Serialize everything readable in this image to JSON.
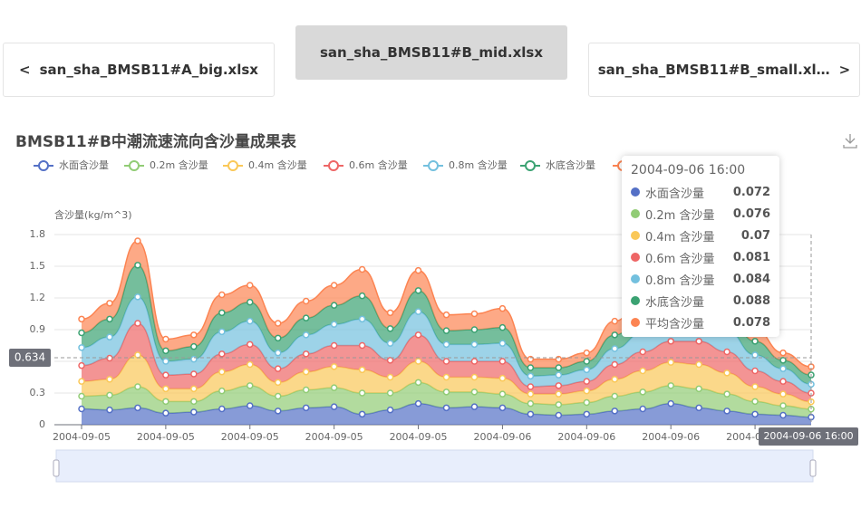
{
  "tabs": {
    "prev": "san_sha_BMSB11#A_big.xlsx",
    "current": "san_sha_BMSB11#B_mid.xlsx",
    "next": "san_sha_BMSB11#B_small.xl…"
  },
  "chart_data": {
    "type": "stacked-area",
    "title": "BMSB11#B中潮流速流向含沙量成果表",
    "y_label": "含沙量(kg/m^3)",
    "categories": [
      "2004-09-05",
      null,
      null,
      "2004-09-05",
      null,
      null,
      "2004-09-05",
      null,
      null,
      "2004-09-05",
      null,
      null,
      "2004-09-05",
      null,
      null,
      "2004-09-06",
      null,
      null,
      "2004-09-06",
      null,
      null,
      "2004-09-06",
      null,
      null,
      "2004-09-06",
      null,
      null
    ],
    "ylim": [
      0,
      1.8
    ],
    "yticks": [
      0,
      0.3,
      0.6,
      0.9,
      1.2,
      1.5,
      1.8
    ],
    "grid": true,
    "pointer_x_label": "2004-09-06 16:00",
    "pointer_y": 0.634,
    "pointer_index": 26,
    "series": [
      {
        "name": "水面含沙量",
        "color": "#5470c6",
        "values": [
          0.15,
          0.14,
          0.16,
          0.11,
          0.12,
          0.15,
          0.18,
          0.13,
          0.16,
          0.17,
          0.1,
          0.14,
          0.2,
          0.16,
          0.17,
          0.16,
          0.1,
          0.09,
          0.1,
          0.13,
          0.15,
          0.2,
          0.16,
          0.13,
          0.1,
          0.09,
          0.072
        ]
      },
      {
        "name": "0.2m 含沙量",
        "color": "#91cc75",
        "values": [
          0.12,
          0.14,
          0.2,
          0.11,
          0.1,
          0.17,
          0.19,
          0.14,
          0.17,
          0.18,
          0.2,
          0.16,
          0.2,
          0.15,
          0.14,
          0.13,
          0.1,
          0.1,
          0.11,
          0.14,
          0.16,
          0.17,
          0.18,
          0.16,
          0.12,
          0.09,
          0.076
        ]
      },
      {
        "name": "0.4m 含沙量",
        "color": "#fac858",
        "values": [
          0.14,
          0.15,
          0.3,
          0.12,
          0.12,
          0.18,
          0.2,
          0.13,
          0.17,
          0.2,
          0.22,
          0.15,
          0.2,
          0.14,
          0.14,
          0.15,
          0.09,
          0.1,
          0.11,
          0.16,
          0.2,
          0.22,
          0.23,
          0.2,
          0.14,
          0.11,
          0.07
        ]
      },
      {
        "name": "0.6m 含沙量",
        "color": "#ee6666",
        "values": [
          0.15,
          0.2,
          0.3,
          0.13,
          0.14,
          0.17,
          0.19,
          0.13,
          0.17,
          0.2,
          0.23,
          0.16,
          0.25,
          0.15,
          0.15,
          0.16,
          0.07,
          0.08,
          0.09,
          0.14,
          0.18,
          0.2,
          0.22,
          0.2,
          0.15,
          0.12,
          0.081
        ]
      },
      {
        "name": "0.8m 含沙量",
        "color": "#73c0de",
        "values": [
          0.17,
          0.2,
          0.25,
          0.13,
          0.14,
          0.21,
          0.22,
          0.15,
          0.18,
          0.2,
          0.25,
          0.16,
          0.22,
          0.16,
          0.16,
          0.17,
          0.1,
          0.1,
          0.11,
          0.15,
          0.18,
          0.18,
          0.2,
          0.2,
          0.15,
          0.12,
          0.084
        ]
      },
      {
        "name": "水底含沙量",
        "color": "#3ba272",
        "values": [
          0.14,
          0.17,
          0.3,
          0.1,
          0.12,
          0.18,
          0.18,
          0.14,
          0.16,
          0.18,
          0.22,
          0.14,
          0.2,
          0.13,
          0.14,
          0.15,
          0.08,
          0.07,
          0.08,
          0.13,
          0.16,
          0.16,
          0.18,
          0.17,
          0.13,
          0.08,
          0.088
        ]
      },
      {
        "name": "平均含沙量",
        "color": "#fc8452",
        "values": [
          0.13,
          0.15,
          0.23,
          0.11,
          0.11,
          0.17,
          0.16,
          0.14,
          0.16,
          0.19,
          0.25,
          0.15,
          0.19,
          0.15,
          0.15,
          0.18,
          0.08,
          0.08,
          0.08,
          0.13,
          0.17,
          0.15,
          0.17,
          0.2,
          0.11,
          0.07,
          0.078
        ]
      }
    ]
  }
}
